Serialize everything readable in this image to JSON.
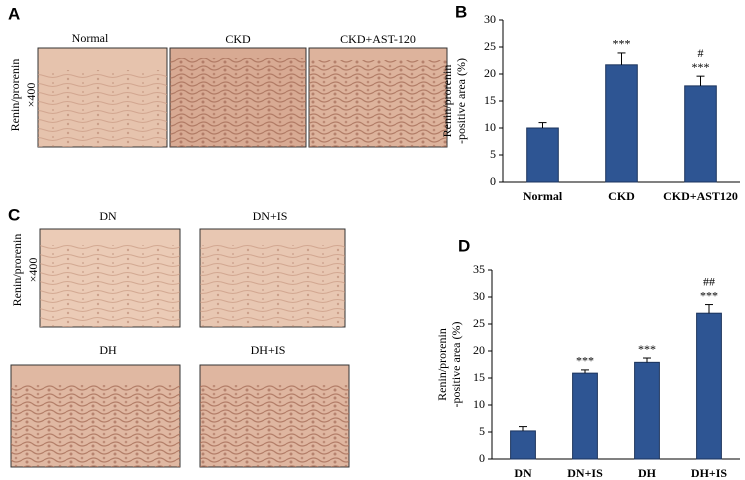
{
  "figure": {
    "panels": [
      "A",
      "B",
      "C",
      "D"
    ],
    "micrographs": [
      {
        "side_label": [
          "Renin/prorenin",
          "×400"
        ],
        "captions": [
          "Normal",
          "CKD",
          "CKD+AST-120"
        ]
      },
      {
        "side_label": [
          "Renin/prorenin",
          "×400"
        ],
        "captions": [
          "DN",
          "DN+IS",
          "DH",
          "DH+IS"
        ]
      }
    ]
  },
  "chart_data": [
    {
      "type": "bar",
      "ylabel": [
        "Renin/prorenin",
        "-positive area (%)"
      ],
      "categories": [
        "Normal",
        "CKD",
        "CKD+AST120"
      ],
      "values": [
        10,
        21.7,
        17.8
      ],
      "errors": [
        1,
        2.2,
        1.8
      ],
      "annotations": [
        [],
        [
          "***"
        ],
        [
          "#",
          "***"
        ]
      ],
      "color": "#2e5593",
      "ylim": [
        0,
        30
      ],
      "yticks": [
        0,
        5,
        10,
        15,
        20,
        25,
        30
      ]
    },
    {
      "type": "bar",
      "ylabel": [
        "Renin/prorenin",
        "-positive area (%)"
      ],
      "categories": [
        "DN",
        "DN+IS",
        "DH",
        "DH+IS"
      ],
      "values": [
        5.2,
        15.9,
        17.9,
        27
      ],
      "errors": [
        0.8,
        0.6,
        0.8,
        1.6
      ],
      "annotations": [
        [],
        [
          "***"
        ],
        [
          "***"
        ],
        [
          "##",
          "***"
        ]
      ],
      "color": "#2e5593",
      "ylim": [
        0,
        35
      ],
      "yticks": [
        0,
        5,
        10,
        15,
        20,
        25,
        30,
        35
      ]
    }
  ]
}
